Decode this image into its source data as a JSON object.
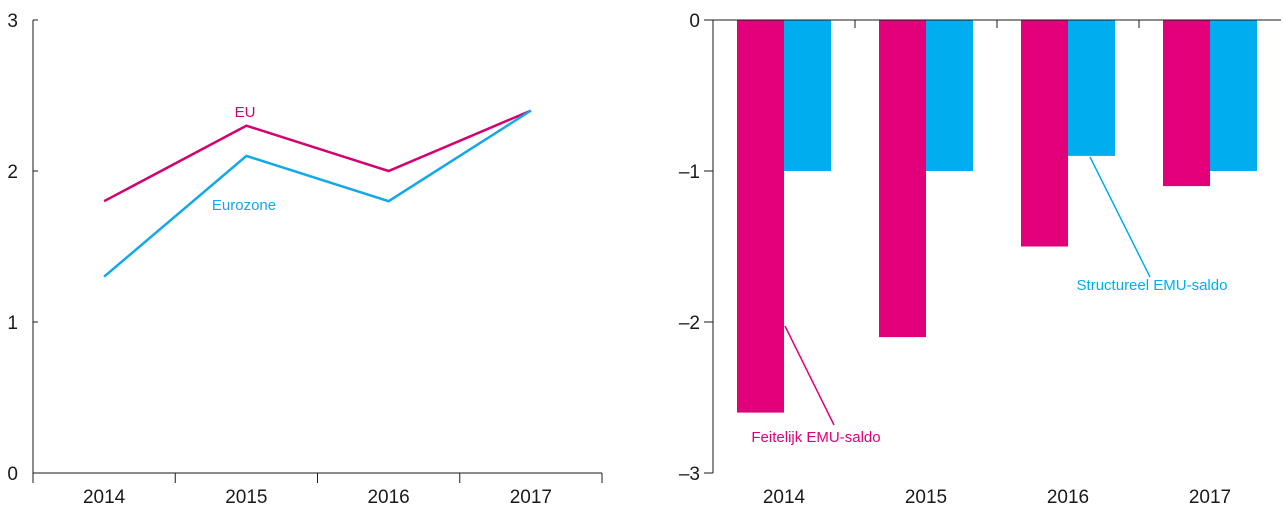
{
  "chart_data": [
    {
      "type": "line",
      "categories": [
        "2014",
        "2015",
        "2016",
        "2017"
      ],
      "ylim": [
        0,
        3
      ],
      "yticks": [
        0,
        1,
        2,
        3
      ],
      "grid": false,
      "series": [
        {
          "name": "EU",
          "values": [
            1.8,
            2.3,
            2.0,
            2.4
          ],
          "color": "#d4006f"
        },
        {
          "name": "Eurozone",
          "values": [
            1.3,
            2.1,
            1.8,
            2.4
          ],
          "color": "#12a9e6"
        }
      ]
    },
    {
      "type": "bar",
      "categories": [
        "2014",
        "2015",
        "2016",
        "2017"
      ],
      "ylim": [
        -3,
        0
      ],
      "yticks": [
        0,
        -1,
        -2,
        -3
      ],
      "ytick_labels": [
        "0",
        "–1",
        "–2",
        "–3"
      ],
      "grid": false,
      "series": [
        {
          "name": "Feitelijk EMU-saldo",
          "values": [
            -2.6,
            -2.1,
            -1.5,
            -1.1
          ],
          "color": "#e2007a"
        },
        {
          "name": "Structureel EMU-saldo",
          "values": [
            -1.0,
            -1.0,
            -0.9,
            -1.0
          ],
          "color": "#00aeef"
        }
      ]
    }
  ]
}
